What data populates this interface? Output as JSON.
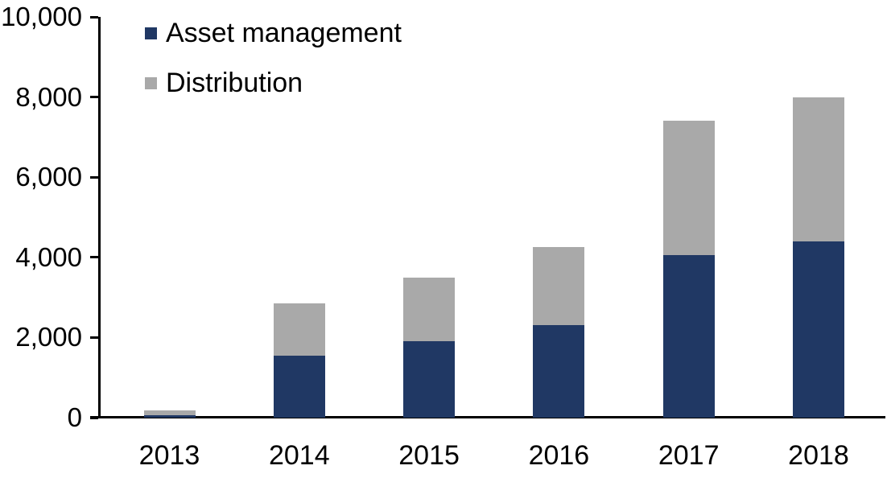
{
  "chart_data": {
    "type": "bar",
    "stacked": true,
    "title": "",
    "xlabel": "",
    "ylabel": "",
    "categories": [
      "2013",
      "2014",
      "2015",
      "2016",
      "2017",
      "2018"
    ],
    "series": [
      {
        "name": "Asset management",
        "color": "#203864",
        "values": [
          70,
          1550,
          1900,
          2300,
          4050,
          4400
        ]
      },
      {
        "name": "Distribution",
        "color": "#a9a9a9",
        "values": [
          105,
          1300,
          1600,
          1950,
          3350,
          3600
        ]
      }
    ],
    "stack_totals": [
      175,
      2850,
      3500,
      4250,
      7400,
      8000
    ],
    "ylim": [
      0,
      10000
    ],
    "ytick_step": 2000,
    "ytick_labels": [
      "0",
      "2,000",
      "4,000",
      "6,000",
      "8,000",
      "10,000"
    ],
    "grid": false,
    "legend_position": "top-left-inside",
    "axis_color": "#000000",
    "background_color": "#ffffff"
  }
}
